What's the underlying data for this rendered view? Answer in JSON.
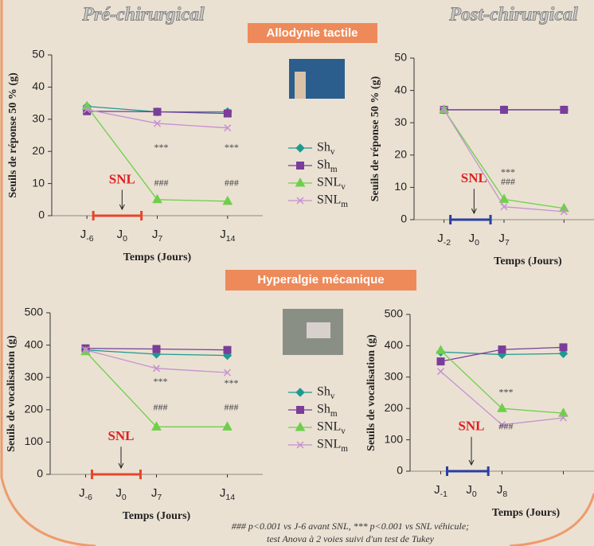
{
  "headers": {
    "left": "Pré-chirurgical",
    "right": "Post-chirurgical",
    "section_top": "Allodynie tactile",
    "section_bottom": "Hyperalgie mécanique"
  },
  "footnote": [
    "### p<0.001 vs J-6 avant SNL, *** p<0.001 vs SNL véhicule;",
    "test Anova à 2 voies suivi d'un test de Tukey"
  ],
  "chart_data": [
    {
      "type": "line",
      "y_label": "Seuils de réponse 50 % (g)",
      "x_label": "Temps (Jours)",
      "categories": [
        "J-6",
        "J7",
        "J14"
      ],
      "surgery_day": "J0",
      "ylim": [
        0,
        50
      ],
      "yticks": [
        0,
        10,
        20,
        30,
        40,
        50
      ],
      "bracket_color": "#e8452c",
      "legend": true,
      "series": [
        {
          "name": "Shv",
          "color": "#1f9a8f",
          "marker": "diamond",
          "values": [
            34,
            32.3,
            32.3
          ]
        },
        {
          "name": "Shm",
          "color": "#7a3d9a",
          "marker": "square",
          "values": [
            32.5,
            32.3,
            31.8
          ]
        },
        {
          "name": "SNLv",
          "color": "#6fcf4a",
          "marker": "triangle",
          "values": [
            34,
            5,
            4.5
          ]
        },
        {
          "name": "SNLm",
          "color": "#c890d0",
          "marker": "x",
          "values": [
            33,
            28.7,
            27.3
          ]
        }
      ],
      "annotations": [
        {
          "text": "***",
          "x": "J7",
          "y": 21
        },
        {
          "text": "***",
          "x": "J14",
          "y": 21
        },
        {
          "text": "###",
          "x": "J7",
          "y": 10
        },
        {
          "text": "###",
          "x": "J14",
          "y": 10
        },
        {
          "text": "SNL",
          "x": "J0",
          "y": 11
        }
      ]
    },
    {
      "type": "line",
      "y_label": "Seuils de réponse 50 % (g)",
      "x_label": "Temps (Jours)",
      "categories": [
        "J-2",
        "J7",
        null
      ],
      "surgery_day": "J0",
      "ylim": [
        0,
        50
      ],
      "yticks": [
        0,
        10,
        20,
        30,
        40,
        50
      ],
      "bracket_color": "#2a3fa0",
      "legend": false,
      "series": [
        {
          "color": "#1f9a8f",
          "marker": "diamond",
          "values": [
            34,
            34,
            34
          ]
        },
        {
          "color": "#7a3d9a",
          "marker": "square",
          "values": [
            34,
            34,
            34
          ]
        },
        {
          "color": "#6fcf4a",
          "marker": "triangle",
          "values": [
            34,
            6.3,
            3.5
          ]
        },
        {
          "color": "#c890d0",
          "marker": "x",
          "values": [
            34,
            4,
            2.5
          ]
        }
      ],
      "annotations": [
        {
          "text": "***",
          "x": "J7",
          "y": 14.5
        },
        {
          "text": "###",
          "x": "J7",
          "y": 11.5
        },
        {
          "text": "SNL",
          "x": "J0",
          "y": 12.5
        }
      ]
    },
    {
      "type": "line",
      "y_label": "Seuils de vocalisation (g)",
      "x_label": "Temps (Jours)",
      "categories": [
        "J-6",
        "J7",
        "J14"
      ],
      "surgery_day": "J0",
      "ylim": [
        0,
        500
      ],
      "yticks": [
        0,
        100,
        200,
        300,
        400,
        500
      ],
      "bracket_color": "#e8452c",
      "legend": true,
      "series": [
        {
          "name": "Shv",
          "color": "#1f9a8f",
          "marker": "diamond",
          "values": [
            385,
            372,
            368
          ]
        },
        {
          "name": "Shm",
          "color": "#7a3d9a",
          "marker": "square",
          "values": [
            390,
            388,
            385
          ]
        },
        {
          "name": "SNLv",
          "color": "#6fcf4a",
          "marker": "triangle",
          "values": [
            380,
            147,
            147
          ]
        },
        {
          "name": "SNLm",
          "color": "#c890d0",
          "marker": "x",
          "values": [
            385,
            328,
            315
          ]
        }
      ],
      "annotations": [
        {
          "text": "***",
          "x": "J7",
          "y": 285
        },
        {
          "text": "***",
          "x": "J14",
          "y": 280
        },
        {
          "text": "###",
          "x": "J7",
          "y": 205
        },
        {
          "text": "###",
          "x": "J14",
          "y": 205
        },
        {
          "text": "SNL",
          "x": "J0",
          "y": 115
        }
      ]
    },
    {
      "type": "line",
      "y_label": "Seuils de vocalisation (g)",
      "x_label": "Temps (Jours)",
      "categories": [
        "J-1",
        "J8",
        null
      ],
      "surgery_day": "J0",
      "ylim": [
        0,
        500
      ],
      "yticks": [
        0,
        100,
        200,
        300,
        400,
        500
      ],
      "bracket_color": "#2a3fa0",
      "legend": false,
      "series": [
        {
          "color": "#1f9a8f",
          "marker": "diamond",
          "values": [
            380,
            372,
            375
          ]
        },
        {
          "color": "#7a3d9a",
          "marker": "square",
          "values": [
            350,
            388,
            395
          ]
        },
        {
          "color": "#6fcf4a",
          "marker": "triangle",
          "values": [
            385,
            200,
            185
          ]
        },
        {
          "color": "#c890d0",
          "marker": "x",
          "values": [
            318,
            148,
            170
          ]
        }
      ],
      "annotations": [
        {
          "text": "***",
          "x": "J8",
          "y": 250
        },
        {
          "text": "###",
          "x": "J8",
          "y": 140
        },
        {
          "text": "SNL",
          "x": "J0",
          "y": 140
        }
      ]
    }
  ]
}
